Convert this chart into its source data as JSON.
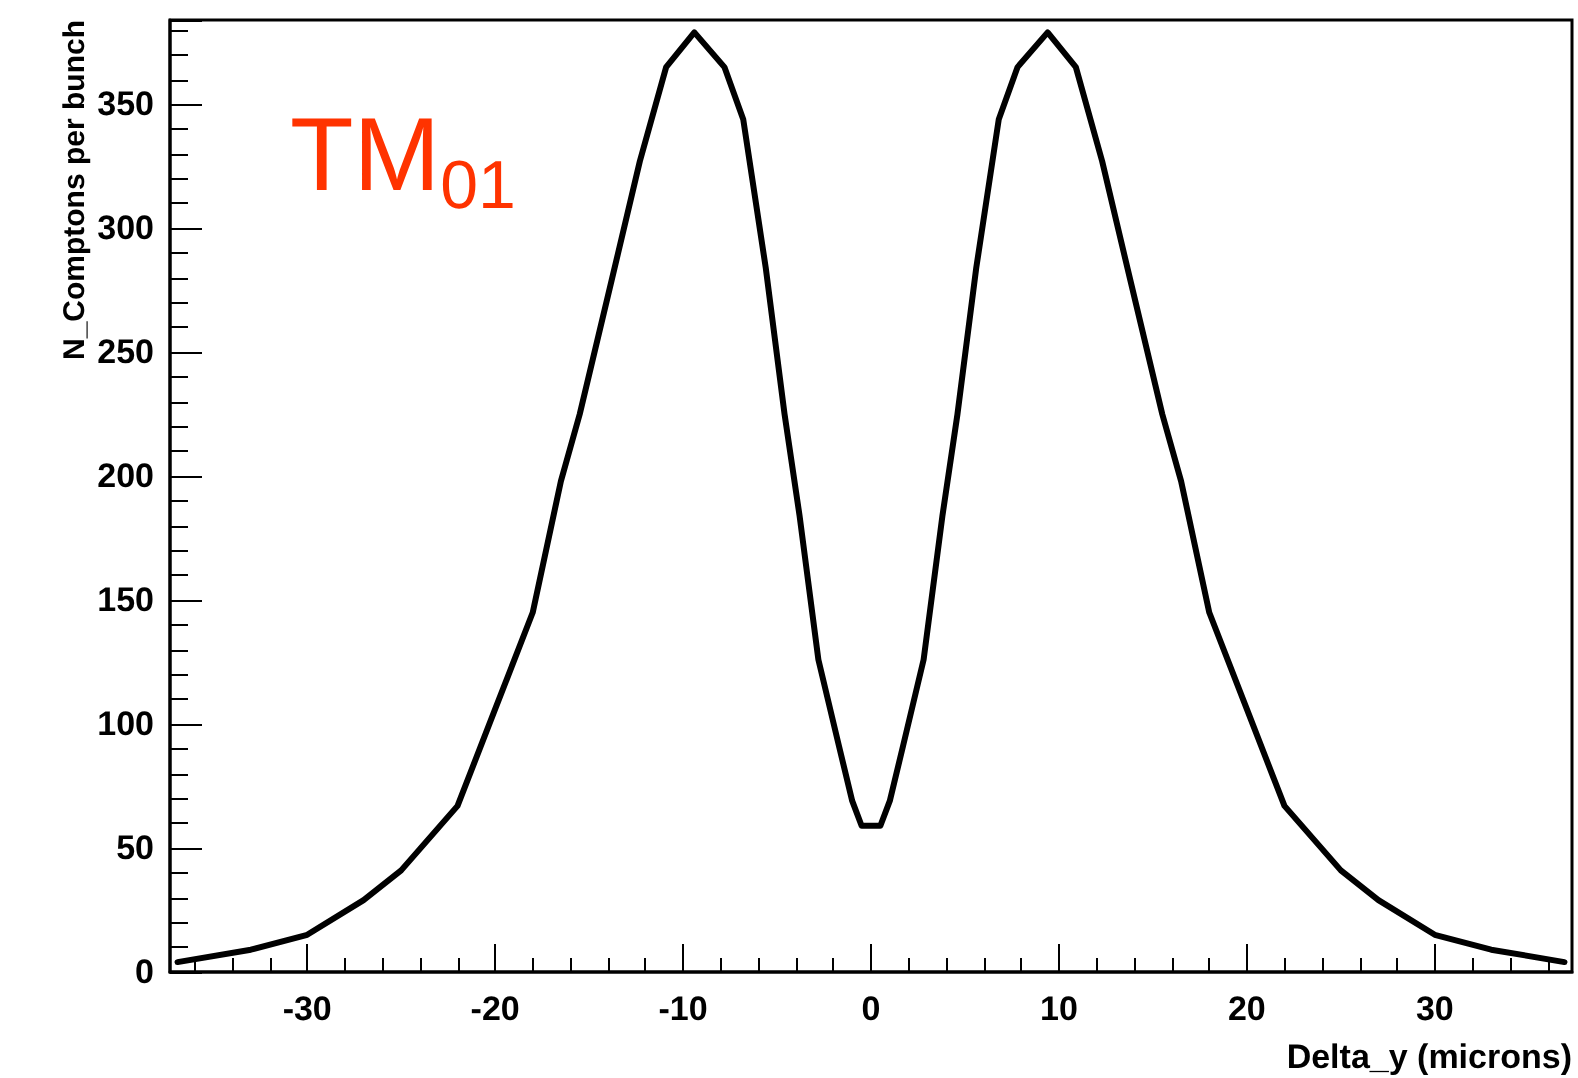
{
  "chart_data": {
    "type": "line",
    "xlabel": "Delta_y (microns)",
    "ylabel": "N_Comptons per bunch",
    "annotations": [
      "TM$_{01}$"
    ],
    "x": [
      -36.9,
      -33,
      -30,
      -27,
      -25,
      -22,
      -20,
      -18,
      -16.5,
      -15.5,
      -13.8,
      -12.3,
      -10.9,
      -9.4,
      -7.8,
      -6.8,
      -5.6,
      -4.6,
      -3.8,
      -2.8,
      -1.7,
      -1.0,
      -0.5,
      0.5,
      1.0,
      1.7,
      2.8,
      3.8,
      4.6,
      5.6,
      6.8,
      7.8,
      9.4,
      10.9,
      12.3,
      13.8,
      15.5,
      16.5,
      18,
      20,
      22,
      25,
      27,
      30,
      33,
      36.9
    ],
    "series": [
      {
        "color": "#000000",
        "values": [
          4,
          9,
          15,
          29,
          41,
          67,
          106,
          145,
          198,
          225,
          279,
          327,
          365,
          379,
          365,
          344,
          284,
          225,
          184,
          126,
          91,
          69,
          59,
          59,
          69,
          91,
          126,
          184,
          225,
          284,
          344,
          365,
          379,
          365,
          327,
          279,
          225,
          198,
          145,
          106,
          67,
          41,
          29,
          15,
          9,
          4
        ]
      }
    ],
    "xlim": [
      -37.3,
      37.3
    ],
    "xticks": [
      -30,
      -20,
      -10,
      0,
      10,
      20,
      30
    ],
    "ylim": [
      0,
      384
    ],
    "yticks": [
      0,
      50,
      100,
      150,
      200,
      250,
      300,
      350
    ],
    "grid": false,
    "marker": "none",
    "line_style": "solid"
  }
}
